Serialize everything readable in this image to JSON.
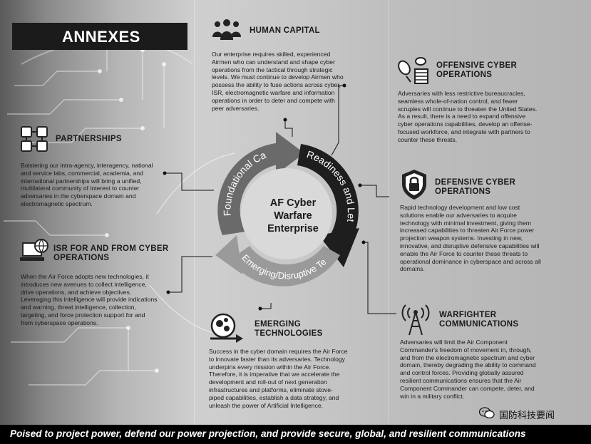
{
  "header": {
    "title": "ANNEXES"
  },
  "center": {
    "line1": "AF Cyber",
    "line2": "Warfare",
    "line3": "Enterprise"
  },
  "cycle": {
    "foundational": "Foundational Capabilities",
    "readiness": "Readiness and Lethality",
    "emerging": "Emerging/Disruptive Technologies"
  },
  "human_capital": {
    "icon": "people-group-icon",
    "title": "HUMAN CAPITAL",
    "lines": [
      "Our enterprise requires skilled, experienced",
      "Airmen who can understand and shape cyber",
      "operations from the tactical through strategic",
      "levels.  We must continue to develop Airmen who",
      "possess the ability to fuse actions across cyber,",
      "ISR, electromagnetic warfare and information",
      "operations in order to deter and compete with",
      "peer adversaries."
    ]
  },
  "partnerships": {
    "icon": "handshake-hands-icon",
    "title": "PARTNERSHIPS",
    "lines": [
      "Bolstering our intra-agency, interagency, national",
      "and service labs, commercial, academia, and",
      "international partnerships will bring a unified,",
      "multilateral community of interest to counter",
      "adversaries in the cyberspace domain and",
      "electromagnetic spectrum."
    ]
  },
  "isr": {
    "icon": "computer-globe-icon",
    "title1": "ISR FOR AND FROM CYBER",
    "title2": "OPERATIONS",
    "lines": [
      "When the Air Force adopts new technologies, it",
      "introduces new avenues to collect intelligence,",
      "drive operations, and achieve objectives.",
      "Leveraging this intelligence will provide indications",
      "and warning, threat intelligence, collection,",
      "targeting, and force protection support for and",
      "from cyberspace operations."
    ]
  },
  "offensive": {
    "icon": "bomb-bug-icon",
    "title1": "OFFENSIVE CYBER",
    "title2": "OPERATIONS",
    "lines": [
      "Adversaries with less restrictive bureaucracies,",
      "seamless whole-of-nation control, and fewer",
      "scruples will continue to threaten the United States.",
      "As a result, there is a need to expand offensive",
      "cyber operations capabilities, develop an offense-",
      "focused workforce, and integrate with partners to",
      "counter these threats."
    ]
  },
  "defensive": {
    "icon": "shield-lock-icon",
    "title1": "DEFENSIVE CYBER",
    "title2": "OPERATIONS",
    "lines": [
      "Rapid technology development and low cost",
      "solutions enable our adversaries to acquire",
      "technology with minimal investment, giving them",
      "increased capabilities to threaten Air Force power",
      "projection weapon systems.  Investing in new,",
      "innovative, and disruptive defensive capabilities will",
      "enable the Air Force to counter these threats to",
      "operational dominance in cyberspace and across all",
      "domains."
    ]
  },
  "emerging": {
    "icon": "gears-arrow-icon",
    "title1": "EMERGING",
    "title2": "TECHNOLOGIES",
    "lines": [
      "Success in the cyber domain requires the Air Force",
      "to innovate faster than its adversaries. Technology",
      "underpins every mission within the Air Force.",
      "Therefore, it is imperative that we accelerate the",
      "development and roll-out of next generation",
      "infrastructures and platforms, eliminate stove-",
      "piped capabilities, establish a data strategy, and",
      "unleash the power of Artificial Intelligence."
    ]
  },
  "warfighter": {
    "icon": "radio-tower-icon",
    "title1": "WARFIGHTER",
    "title2": "COMMUNICATIONS",
    "lines": [
      "Adversaries will limit the Air Component",
      "Commander's freedom of movement in, through,",
      "and from the electromagnetic spectrum and cyber",
      "domain, thereby degrading the ability to command",
      "and control forces.  Providing globally assured",
      "resilient communications ensures that the Air",
      "Component Commander can compete, deter, and",
      "win in a military conflict."
    ]
  },
  "footer": {
    "text": "Poised to project power, defend our power projection, and provide secure, global, and resilient communications"
  },
  "watermark": {
    "icon": "wechat-icon",
    "text": "国防科技要闻"
  }
}
